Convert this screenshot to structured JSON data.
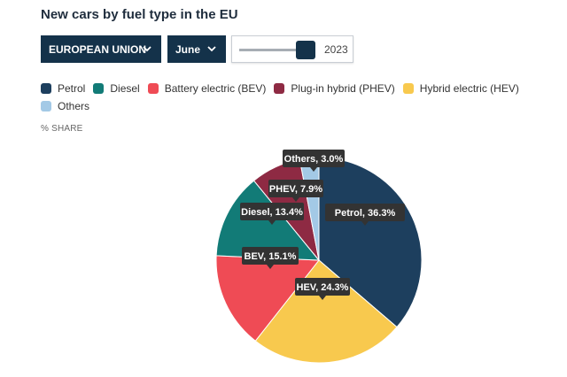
{
  "title": "New cars by fuel type in the EU",
  "controls": {
    "region": "EUROPEAN UNION",
    "month": "June",
    "year": "2023",
    "year_slider_position": 0.92
  },
  "axis_label": "% SHARE",
  "chart_data": {
    "type": "pie",
    "unit": "% SHARE",
    "slices": [
      {
        "name": "Petrol",
        "label": "Petrol, 36.3%",
        "value": 36.3,
        "color": "#1d3f5e"
      },
      {
        "name": "Hybrid electric (HEV)",
        "label": "HEV, 24.3%",
        "value": 24.3,
        "color": "#f8c94e"
      },
      {
        "name": "Battery electric (BEV)",
        "label": "BEV, 15.1%",
        "value": 15.1,
        "color": "#ef4b55"
      },
      {
        "name": "Diesel",
        "label": "Diesel, 13.4%",
        "value": 13.4,
        "color": "#127b77"
      },
      {
        "name": "Plug-in hybrid (PHEV)",
        "label": "PHEV, 7.9%",
        "value": 7.9,
        "color": "#8e2a43"
      },
      {
        "name": "Others",
        "label": "Others, 3.0%",
        "value": 3.0,
        "color": "#a3c9e6"
      }
    ],
    "legend": [
      {
        "name": "Petrol",
        "color": "#1d3f5e"
      },
      {
        "name": "Diesel",
        "color": "#127b77"
      },
      {
        "name": "Battery electric (BEV)",
        "color": "#ef4b55"
      },
      {
        "name": "Plug-in hybrid (PHEV)",
        "color": "#8e2a43"
      },
      {
        "name": "Hybrid electric (HEV)",
        "color": "#f8c94e"
      },
      {
        "name": "Others",
        "color": "#a3c9e6"
      }
    ],
    "legend_position": "top"
  }
}
